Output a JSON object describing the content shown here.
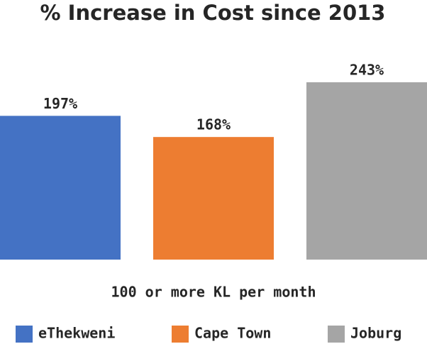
{
  "chart_data": {
    "type": "bar",
    "title": "% Increase in Cost since 2013",
    "categories": [
      "100 or more KL per month"
    ],
    "series": [
      {
        "name": "eThekweni",
        "color": "#4472c4",
        "values": [
          197
        ],
        "value_labels": [
          "197%"
        ]
      },
      {
        "name": "Cape Town",
        "color": "#ed7d31",
        "values": [
          168
        ],
        "value_labels": [
          "168%"
        ]
      },
      {
        "name": "Joburg",
        "color": "#a5a5a5",
        "values": [
          243
        ],
        "value_labels": [
          "243%"
        ]
      }
    ]
  }
}
